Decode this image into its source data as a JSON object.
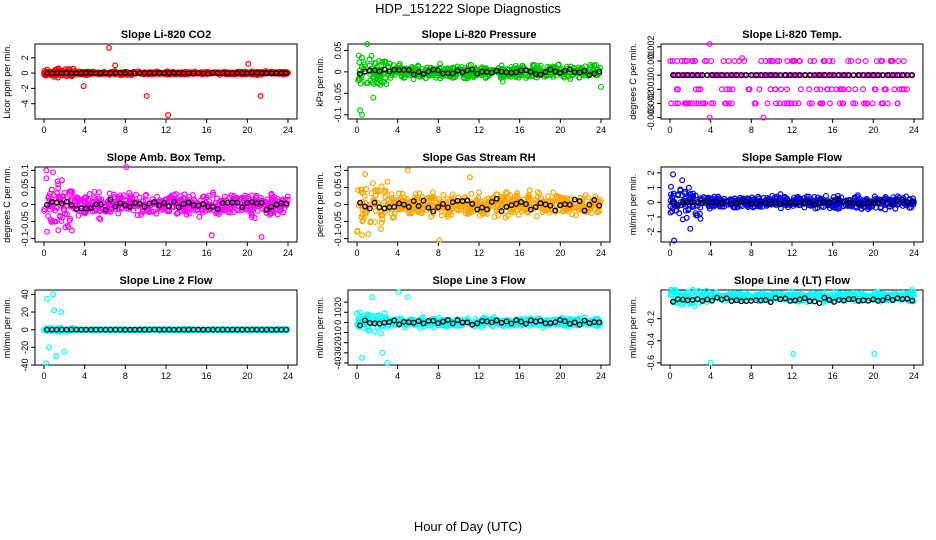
{
  "figure": {
    "title": "HDP_151222  Slope Diagnostics",
    "xlabel": "Hour of Day (UTC)"
  },
  "chart_data": [
    {
      "type": "scatter",
      "title": "Slope Li-820 CO2",
      "ylabel": "Licor ppm per min.",
      "color": "#ff0000",
      "xlim": [
        0,
        24
      ],
      "xticks": [
        0,
        4,
        8,
        12,
        16,
        20,
        24
      ],
      "ylim": [
        -6,
        3.8
      ],
      "yticks": [
        -4,
        -2,
        0,
        2
      ],
      "spread": 0.25,
      "series_points": [
        [
          6.4,
          3.3
        ],
        [
          7.0,
          1.0
        ],
        [
          10.1,
          -3.0
        ],
        [
          12.2,
          -5.5
        ],
        [
          21.3,
          -3.0
        ],
        [
          20.1,
          1.2
        ],
        [
          1.0,
          -0.5
        ],
        [
          3.9,
          -1.7
        ]
      ],
      "black_spread": 0.05,
      "black_center": 0.0
    },
    {
      "type": "scatter",
      "title": "Slope Li-820 Pressure",
      "ylabel": "kPa per min.",
      "color": "#00c800",
      "xlim": [
        0,
        24
      ],
      "xticks": [
        0,
        4,
        8,
        12,
        16,
        20,
        24
      ],
      "ylim": [
        -0.11,
        0.065
      ],
      "yticks": [
        -0.1,
        -0.05,
        0.0,
        0.05
      ],
      "spread": 0.02,
      "series_points": [
        [
          1.0,
          0.065
        ],
        [
          0.3,
          -0.09
        ],
        [
          0.5,
          -0.1
        ],
        [
          1.6,
          -0.06
        ],
        [
          24,
          -0.035
        ]
      ],
      "black_spread": 0.01,
      "black_center": 0.0
    },
    {
      "type": "scatter",
      "title": "Slope Li-820 Temp.",
      "ylabel": "degrees C per min.",
      "color": "#ff00ff",
      "xlim": [
        0,
        24
      ],
      "xticks": [
        0,
        4,
        8,
        12,
        16,
        20,
        24
      ],
      "ylim": [
        -0.0031,
        0.0022
      ],
      "yticks": [
        -0.003,
        -0.002,
        -0.001,
        0.0,
        0.001,
        0.002
      ],
      "levels": [
        0.001,
        0.0,
        -0.001,
        -0.002
      ],
      "series_points": [
        [
          3.9,
          0.0023
        ],
        [
          3.9,
          -0.003
        ],
        [
          9.2,
          -0.003
        ],
        [
          7.1,
          0.0012
        ]
      ],
      "black_spread": 0.0,
      "black_center": 0.0
    },
    {
      "type": "scatter",
      "title": "Slope Amb. Box Temp.",
      "ylabel": "degrees C per min.",
      "color": "#ff00ff",
      "xlim": [
        0,
        24
      ],
      "xticks": [
        0,
        4,
        8,
        12,
        16,
        20,
        24
      ],
      "ylim": [
        -0.11,
        0.11
      ],
      "yticks": [
        -0.1,
        -0.05,
        0.0,
        0.05,
        0.1
      ],
      "spread": 0.04,
      "series_points": [
        [
          8.1,
          0.11
        ],
        [
          0.3,
          -0.08
        ],
        [
          21.4,
          -0.095
        ],
        [
          16.5,
          -0.09
        ]
      ],
      "black_spread": 0.02,
      "black_center": 0.0
    },
    {
      "type": "scatter",
      "title": "Slope Gas Stream RH",
      "ylabel": "percent per min.",
      "color": "#ffa500",
      "xlim": [
        0,
        24
      ],
      "xticks": [
        0,
        4,
        8,
        12,
        16,
        20,
        24
      ],
      "ylim": [
        -0.11,
        0.11
      ],
      "yticks": [
        -0.1,
        -0.05,
        0.0,
        0.05,
        0.1
      ],
      "spread": 0.04,
      "series_points": [
        [
          8.1,
          -0.105
        ],
        [
          0.5,
          -0.09
        ],
        [
          11.1,
          0.08
        ],
        [
          5.0,
          0.1
        ]
      ],
      "black_spread": 0.03,
      "black_center": 0.0
    },
    {
      "type": "scatter",
      "title": "Slope Sample Flow",
      "ylabel": "ml/min per min.",
      "color": "#0000ff",
      "xlim": [
        0,
        24
      ],
      "xticks": [
        0,
        4,
        8,
        12,
        16,
        20,
        24
      ],
      "ylim": [
        -2.7,
        2.4
      ],
      "yticks": [
        -2,
        -1,
        0,
        1,
        2
      ],
      "spread": 0.5,
      "series_points": [
        [
          0.4,
          -2.6
        ],
        [
          0.3,
          1.9
        ],
        [
          1.2,
          1.5
        ],
        [
          2.0,
          -1.8
        ]
      ],
      "black_spread": 0.2,
      "black_center": 0.0
    },
    {
      "type": "scatter",
      "title": "Slope Line 2 Flow",
      "ylabel": "ml/min per min.",
      "color": "#00ffff",
      "xlim": [
        0,
        24
      ],
      "xticks": [
        0,
        4,
        8,
        12,
        16,
        20,
        24
      ],
      "ylim": [
        -40,
        45
      ],
      "yticks": [
        -40,
        -20,
        0,
        20,
        40
      ],
      "spread": 1.0,
      "series_points": [
        [
          0.3,
          35
        ],
        [
          0.9,
          40
        ],
        [
          0.5,
          -20
        ],
        [
          1.2,
          -30
        ],
        [
          2.0,
          -25
        ],
        [
          1.0,
          22
        ],
        [
          0.2,
          -38
        ],
        [
          1.7,
          20
        ]
      ],
      "black_spread": 0.0,
      "black_center": 0.0
    },
    {
      "type": "scatter",
      "title": "Slope Line 3 Flow",
      "ylabel": "ml/min per min.",
      "color": "#00ffff",
      "xlim": [
        0,
        24
      ],
      "xticks": [
        0,
        4,
        8,
        12,
        16,
        20,
        24
      ],
      "ylim": [
        -42,
        32
      ],
      "yticks": [
        -40,
        -30,
        -20,
        -10,
        0,
        10,
        20
      ],
      "spread": 5,
      "series_points": [
        [
          4.1,
          30
        ],
        [
          5.0,
          25
        ],
        [
          3.0,
          -40
        ],
        [
          2.5,
          -30
        ],
        [
          0.5,
          -35
        ],
        [
          1.5,
          25
        ]
      ],
      "black_spread": 4,
      "black_center": 0.0
    },
    {
      "type": "scatter",
      "title": "Slope Line 4 (LT) Flow",
      "ylabel": "ml/min per min.",
      "color": "#00ffff",
      "xlim": [
        0,
        24
      ],
      "xticks": [
        0,
        4,
        8,
        12,
        16,
        20,
        24
      ],
      "ylim": [
        -0.62,
        0.06
      ],
      "yticks": [
        -0.6,
        -0.4,
        -0.2
      ],
      "spread": 0.05,
      "series_points": [
        [
          4.0,
          -0.6
        ],
        [
          12.1,
          -0.52
        ],
        [
          20.1,
          -0.52
        ],
        [
          0.5,
          0.05
        ]
      ],
      "black_spread": 0.03,
      "black_center": -0.03
    }
  ]
}
